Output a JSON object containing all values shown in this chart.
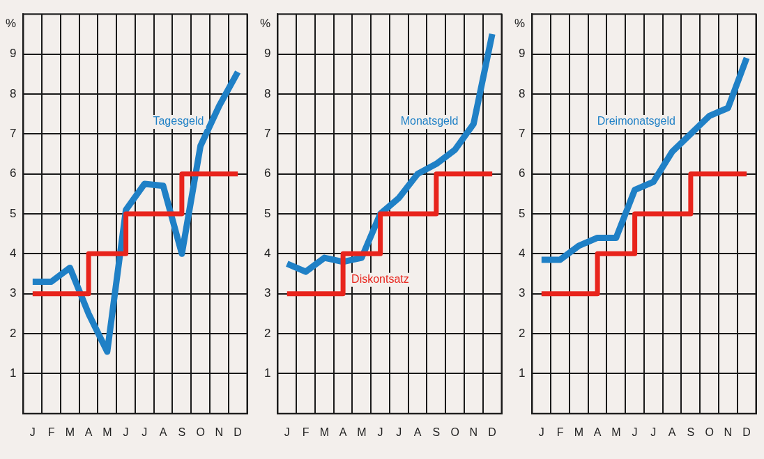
{
  "chart_data": [
    {
      "type": "line",
      "ylabel": "%",
      "ylim": [
        0,
        10
      ],
      "grid": true,
      "legend": false,
      "marker": "none",
      "line_style": "solid",
      "yticks": [
        1,
        2,
        3,
        4,
        5,
        6,
        7,
        8,
        9
      ],
      "categories": [
        "J",
        "F",
        "M",
        "A",
        "M",
        "J",
        "J",
        "A",
        "S",
        "O",
        "N",
        "D"
      ],
      "series": [
        {
          "type": "step",
          "color": "#e8241c",
          "values": [
            3,
            3,
            3,
            4,
            4,
            5,
            5,
            5,
            6,
            6,
            6,
            6
          ]
        },
        {
          "type": "line",
          "name": "Tagesgeld",
          "color": "#1f80c6",
          "values": [
            3.3,
            3.3,
            3.65,
            2.5,
            1.55,
            5.1,
            5.75,
            5.7,
            4.0,
            6.7,
            7.7,
            8.55
          ]
        }
      ]
    },
    {
      "type": "line",
      "ylabel": "%",
      "ylim": [
        0,
        10
      ],
      "grid": true,
      "legend": false,
      "marker": "none",
      "line_style": "solid",
      "yticks": [
        1,
        2,
        3,
        4,
        5,
        6,
        7,
        8,
        9
      ],
      "categories": [
        "J",
        "F",
        "M",
        "A",
        "M",
        "J",
        "J",
        "A",
        "S",
        "O",
        "N",
        "D"
      ],
      "series": [
        {
          "type": "step",
          "name": "Diskontsatz",
          "color": "#e8241c",
          "values": [
            3,
            3,
            3,
            4,
            4,
            5,
            5,
            5,
            6,
            6,
            6,
            6
          ]
        },
        {
          "type": "line",
          "name": "Monatsgeld",
          "color": "#1f80c6",
          "values": [
            3.75,
            3.55,
            3.9,
            3.8,
            3.9,
            5.0,
            5.4,
            6.0,
            6.25,
            6.6,
            7.25,
            9.5
          ]
        }
      ]
    },
    {
      "type": "line",
      "ylabel": "%",
      "ylim": [
        0,
        10
      ],
      "grid": true,
      "legend": false,
      "marker": "none",
      "line_style": "solid",
      "yticks": [
        1,
        2,
        3,
        4,
        5,
        6,
        7,
        8,
        9
      ],
      "categories": [
        "J",
        "F",
        "M",
        "A",
        "M",
        "J",
        "J",
        "A",
        "S",
        "O",
        "N",
        "D"
      ],
      "series": [
        {
          "type": "step",
          "color": "#e8241c",
          "values": [
            3,
            3,
            3,
            4,
            4,
            5,
            5,
            5,
            6,
            6,
            6,
            6
          ]
        },
        {
          "type": "line",
          "name": "Dreimonatsgeld",
          "color": "#1f80c6",
          "values": [
            3.85,
            3.85,
            4.2,
            4.4,
            4.4,
            5.6,
            5.8,
            6.55,
            7.0,
            7.45,
            7.65,
            8.9
          ]
        }
      ]
    }
  ]
}
